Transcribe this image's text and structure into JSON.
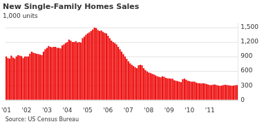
{
  "chart_data": {
    "type": "bar",
    "title": "New Single-Family Homes Sales",
    "subtitle": "1,000 units",
    "source": "Source: US Census Bureau",
    "color": "#ee1111",
    "categories": [
      "'01",
      null,
      null,
      null,
      null,
      null,
      null,
      null,
      null,
      null,
      null,
      null,
      "'02",
      null,
      null,
      null,
      null,
      null,
      null,
      null,
      null,
      null,
      null,
      null,
      "'03",
      null,
      null,
      null,
      null,
      null,
      null,
      null,
      null,
      null,
      null,
      null,
      "'04",
      null,
      null,
      null,
      null,
      null,
      null,
      null,
      null,
      null,
      null,
      null,
      "'05",
      null,
      null,
      null,
      null,
      null,
      null,
      null,
      null,
      null,
      null,
      null,
      "'06",
      null,
      null,
      null,
      null,
      null,
      null,
      null,
      null,
      null,
      null,
      null,
      "'07",
      null,
      null,
      null,
      null,
      null,
      null,
      null,
      null,
      null,
      null,
      null,
      "'08",
      null,
      null,
      null,
      null,
      null,
      null,
      null,
      null,
      null,
      null,
      null,
      "'09",
      null,
      null,
      null,
      null,
      null,
      null,
      null,
      null,
      null,
      null,
      null,
      "'10",
      null,
      null,
      null,
      null,
      null,
      null,
      null,
      null,
      null,
      null,
      null,
      "'11",
      null,
      null,
      null,
      null,
      null,
      null,
      null,
      null,
      null,
      null,
      null,
      null,
      null,
      null,
      null,
      null
    ],
    "values": [
      900,
      870,
      860,
      920,
      880,
      860,
      900,
      930,
      920,
      910,
      870,
      900,
      900,
      900,
      960,
      1000,
      980,
      970,
      960,
      950,
      940,
      930,
      1000,
      1050,
      1080,
      1120,
      1100,
      1090,
      1100,
      1100,
      1080,
      1080,
      1070,
      1130,
      1150,
      1180,
      1200,
      1250,
      1230,
      1200,
      1200,
      1220,
      1190,
      1200,
      1190,
      1280,
      1310,
      1350,
      1380,
      1400,
      1430,
      1460,
      1500,
      1490,
      1450,
      1430,
      1440,
      1410,
      1390,
      1380,
      1330,
      1280,
      1230,
      1200,
      1180,
      1150,
      1100,
      1050,
      1000,
      950,
      900,
      850,
      800,
      760,
      730,
      700,
      680,
      660,
      720,
      730,
      720,
      660,
      620,
      590,
      570,
      560,
      540,
      530,
      510,
      490,
      480,
      470,
      490,
      480,
      460,
      450,
      450,
      440,
      440,
      410,
      400,
      390,
      380,
      370,
      430,
      440,
      420,
      400,
      390,
      380,
      380,
      380,
      360,
      350,
      350,
      340,
      350,
      340,
      330,
      320,
      310,
      310,
      320,
      320,
      310,
      300,
      290,
      300,
      310,
      315,
      310,
      305,
      300,
      295,
      300,
      305,
      310
    ],
    "ylim": [
      0,
      1600
    ],
    "yticks": [
      0,
      300,
      600,
      900,
      {
        "value": 1200,
        "label": "1,200"
      },
      {
        "value": 1500,
        "label": "1,500"
      }
    ],
    "grid": true
  }
}
